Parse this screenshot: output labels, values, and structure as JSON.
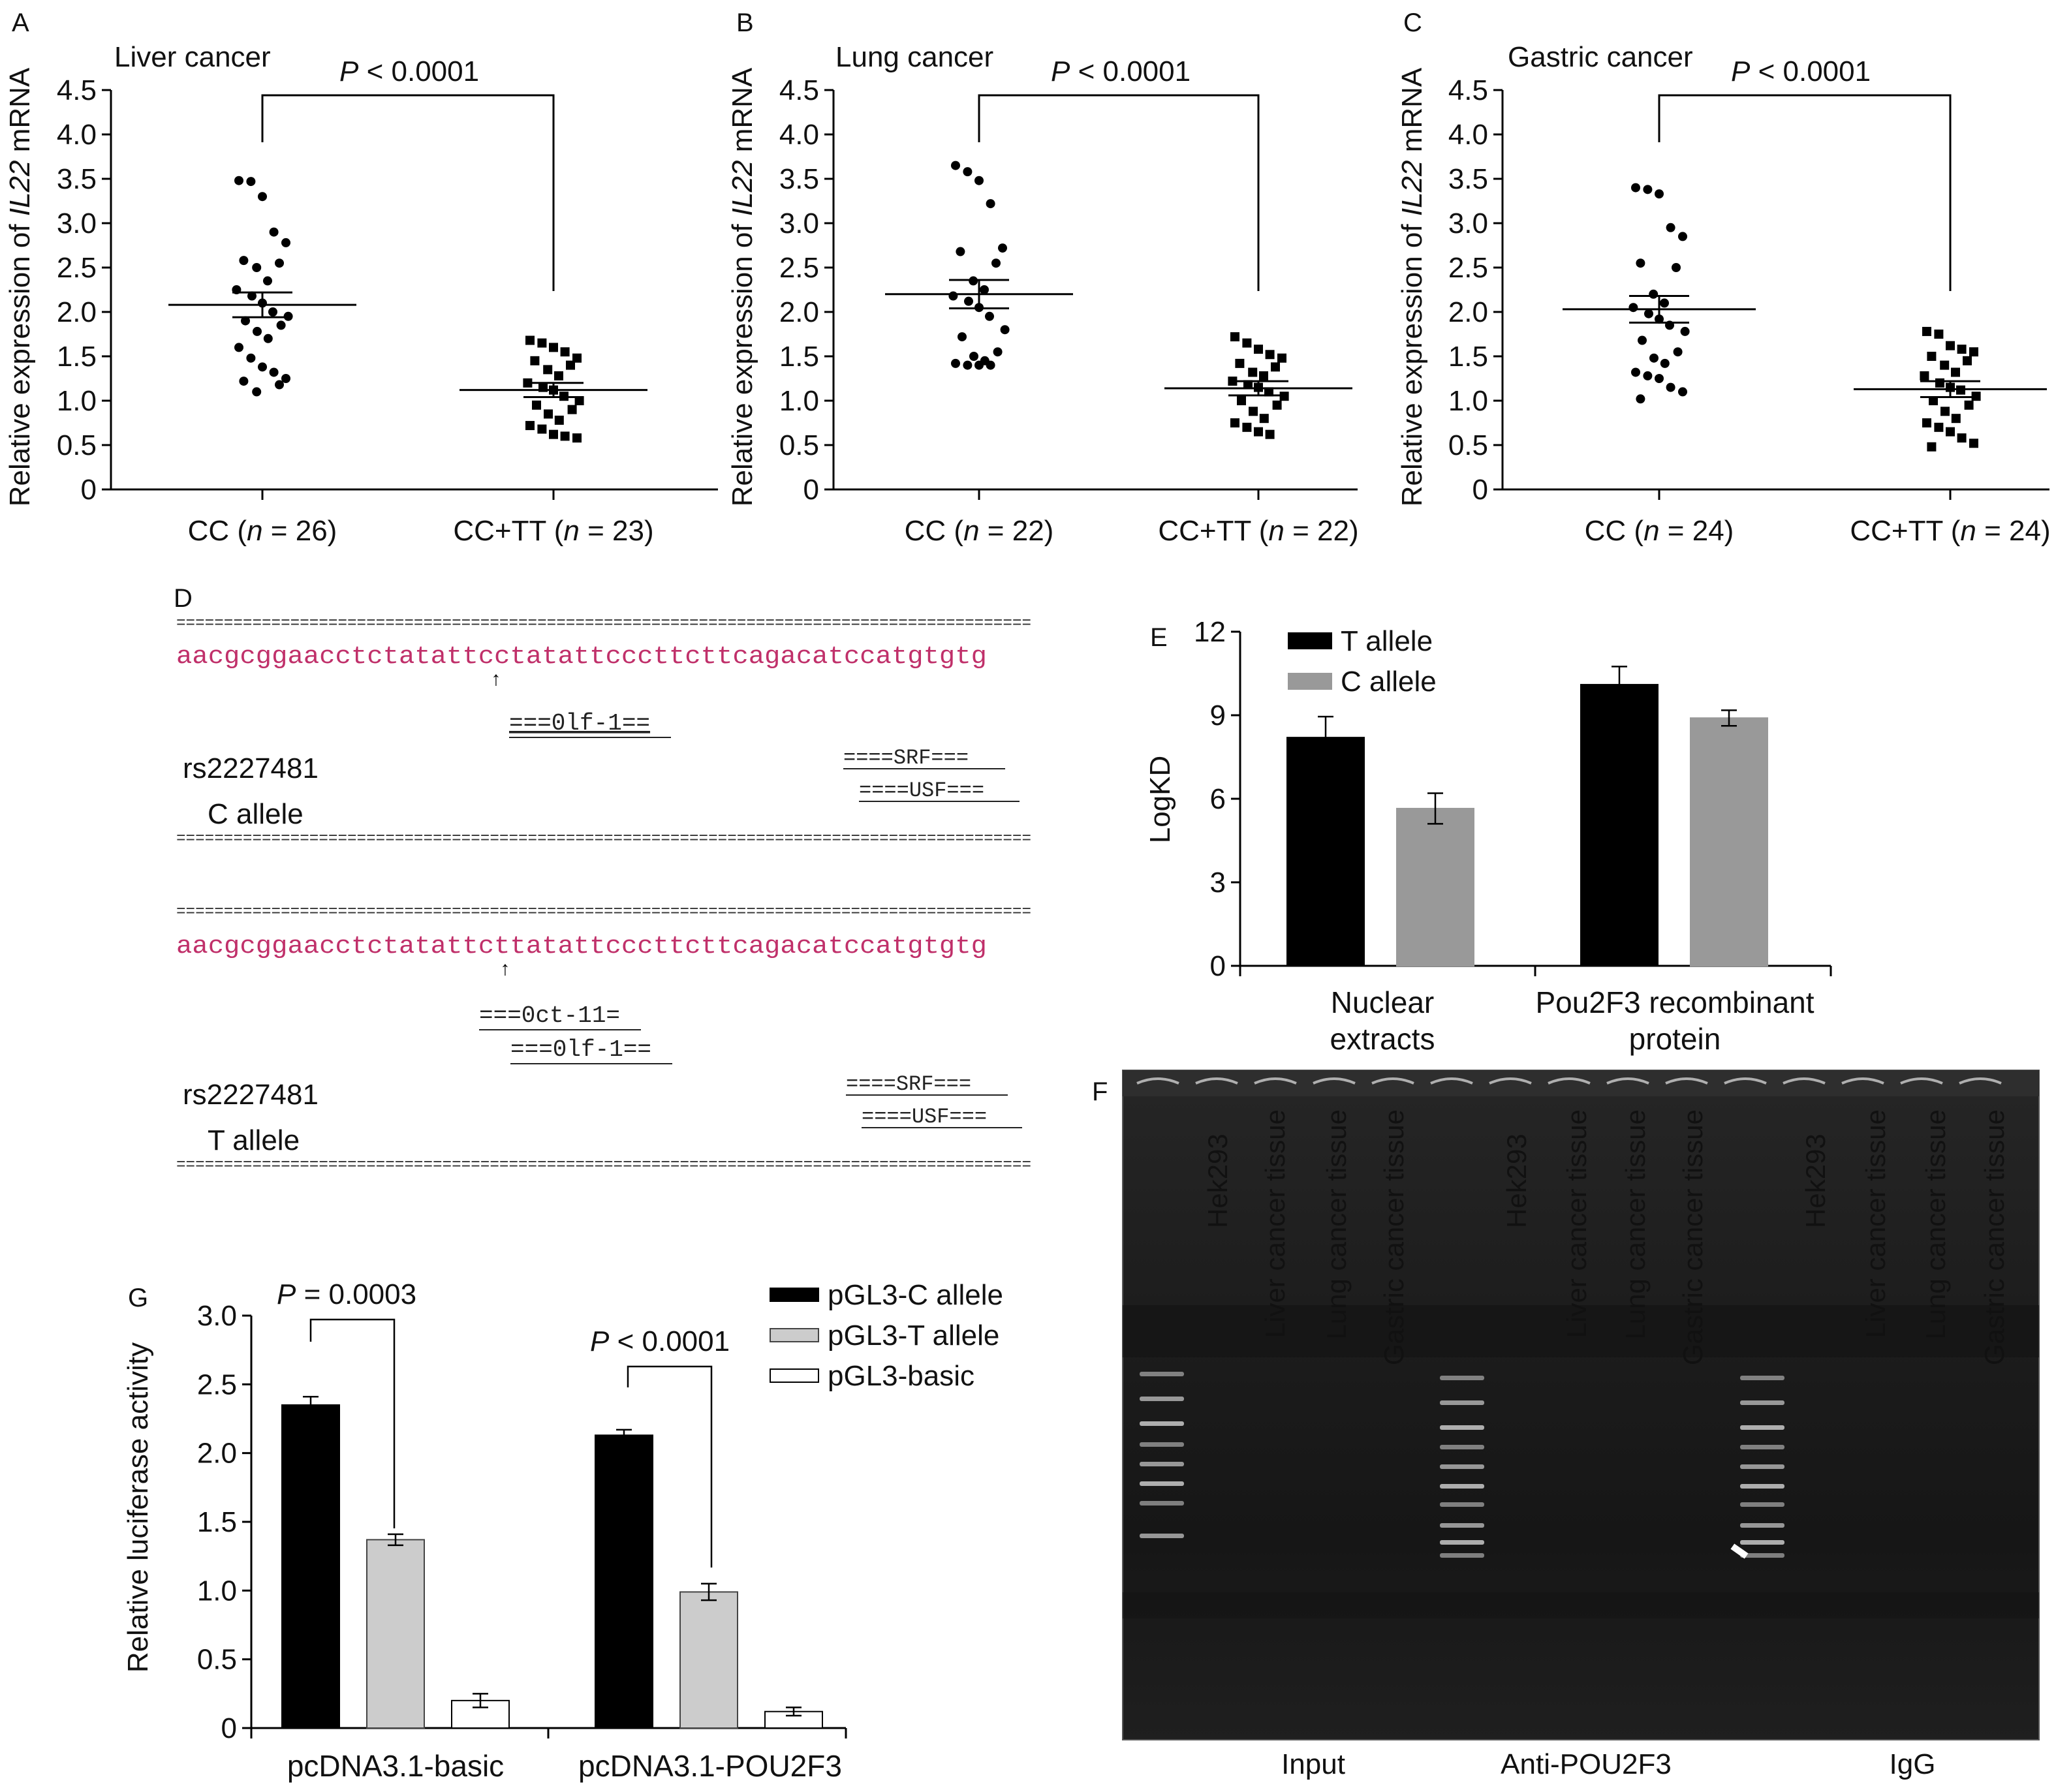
{
  "panels": {
    "A": {
      "letter": "A",
      "title": "Liver cancer",
      "p_label": "P",
      "p_text": " < 0.0001"
    },
    "B": {
      "letter": "B",
      "title": "Lung cancer",
      "p_label": "P",
      "p_text": " < 0.0001"
    },
    "C": {
      "letter": "C",
      "title": "Gastric cancer",
      "p_label": "P",
      "p_text": " < 0.0001"
    },
    "D": {
      "letter": "D"
    },
    "E": {
      "letter": "E"
    },
    "F": {
      "letter": "F"
    },
    "G": {
      "letter": "G",
      "p1_label": "P",
      "p1_text": " = 0.0003",
      "p2_label": "P",
      "p2_text": " < 0.0001"
    }
  },
  "scatter_ylabel": {
    "pre": "Relative expression of ",
    "italic": "IL22",
    "post": " mRNA"
  },
  "colors": {
    "black": "#000000",
    "gray": "#999999",
    "lightgray": "#cccccc",
    "white": "#ffffff",
    "sequence": "#c0306a",
    "gel_bg": "#1b1b1b"
  },
  "chart_data": [
    {
      "panel": "A",
      "type": "scatter",
      "title": "Liver cancer",
      "ylabel": "Relative expression of IL22 mRNA",
      "ylim": [
        0,
        4.5
      ],
      "yticks": [
        "0",
        "0.5",
        "1.0",
        "1.5",
        "2.0",
        "2.5",
        "3.0",
        "3.5",
        "4.0",
        "4.5"
      ],
      "groups": [
        {
          "prefix": "CC (",
          "n_label": "n",
          "n_text": " = 26)",
          "mean": 2.08,
          "sem_low": 1.94,
          "sem_high": 2.22,
          "marker": "circle",
          "values": [
            3.48,
            3.47,
            3.3,
            2.9,
            2.78,
            2.58,
            2.55,
            2.5,
            2.35,
            2.25,
            2.18,
            2.1,
            2.0,
            1.95,
            1.9,
            1.85,
            1.78,
            1.7,
            1.6,
            1.48,
            1.38,
            1.32,
            1.25,
            1.22,
            1.18,
            1.1
          ]
        },
        {
          "prefix": "CC+TT (",
          "n_label": "n",
          "n_text": " = 23)",
          "mean": 1.12,
          "sem_low": 1.04,
          "sem_high": 1.2,
          "marker": "square",
          "values": [
            1.68,
            1.65,
            1.6,
            1.55,
            1.48,
            1.45,
            1.4,
            1.35,
            1.28,
            1.2,
            1.15,
            1.12,
            1.05,
            1.0,
            0.95,
            0.9,
            0.85,
            0.78,
            0.72,
            0.68,
            0.62,
            0.6,
            0.58
          ]
        }
      ]
    },
    {
      "panel": "B",
      "type": "scatter",
      "title": "Lung cancer",
      "ylabel": "Relative expression of IL22 mRNA",
      "ylim": [
        0,
        4.5
      ],
      "yticks": [
        "0",
        "0.5",
        "1.0",
        "1.5",
        "2.0",
        "2.5",
        "3.0",
        "3.5",
        "4.0",
        "4.5"
      ],
      "groups": [
        {
          "prefix": "CC (",
          "n_label": "n",
          "n_text": " = 22)",
          "mean": 2.2,
          "sem_low": 2.04,
          "sem_high": 2.36,
          "marker": "circle",
          "values": [
            3.65,
            3.58,
            3.48,
            3.22,
            2.72,
            2.68,
            2.55,
            2.35,
            2.25,
            2.18,
            2.12,
            2.05,
            1.95,
            1.8,
            1.72,
            1.55,
            1.5,
            1.45,
            1.42,
            1.4,
            1.4,
            1.4
          ]
        },
        {
          "prefix": "CC+TT (",
          "n_label": "n",
          "n_text": " = 22)",
          "mean": 1.14,
          "sem_low": 1.06,
          "sem_high": 1.22,
          "marker": "square",
          "values": [
            1.72,
            1.65,
            1.58,
            1.52,
            1.48,
            1.42,
            1.38,
            1.32,
            1.28,
            1.22,
            1.18,
            1.15,
            1.1,
            1.05,
            1.0,
            0.95,
            0.88,
            0.8,
            0.75,
            0.7,
            0.65,
            0.62
          ]
        }
      ]
    },
    {
      "panel": "C",
      "type": "scatter",
      "title": "Gastric cancer",
      "ylabel": "Relative expression of IL22 mRNA",
      "ylim": [
        0,
        4.5
      ],
      "yticks": [
        "0",
        "0.5",
        "1.0",
        "1.5",
        "2.0",
        "2.5",
        "3.0",
        "3.5",
        "4.0",
        "4.5"
      ],
      "groups": [
        {
          "prefix": "CC (",
          "n_label": "n",
          "n_text": " = 24)",
          "mean": 2.03,
          "sem_low": 1.88,
          "sem_high": 2.18,
          "marker": "circle",
          "values": [
            3.4,
            3.38,
            3.33,
            2.95,
            2.85,
            2.55,
            2.5,
            2.2,
            2.1,
            2.05,
            1.98,
            1.92,
            1.85,
            1.78,
            1.68,
            1.55,
            1.48,
            1.42,
            1.32,
            1.28,
            1.25,
            1.15,
            1.1,
            1.02
          ]
        },
        {
          "prefix": "CC+TT (",
          "n_label": "n",
          "n_text": " = 24)",
          "mean": 1.13,
          "sem_low": 1.04,
          "sem_high": 1.22,
          "marker": "square",
          "values": [
            1.78,
            1.75,
            1.62,
            1.58,
            1.55,
            1.5,
            1.45,
            1.4,
            1.32,
            1.28,
            1.2,
            1.15,
            1.12,
            1.05,
            1.0,
            0.95,
            0.88,
            0.8,
            0.75,
            0.7,
            0.65,
            0.58,
            0.52,
            0.48
          ]
        }
      ]
    },
    {
      "panel": "E",
      "type": "bar",
      "ylabel": "LogKD",
      "ylim": [
        0,
        12
      ],
      "yticks": [
        "0",
        "3",
        "6",
        "9",
        "12"
      ],
      "categories": [
        "Nuclear|extracts",
        "Pou2F3 recombinant|protein"
      ],
      "series": [
        {
          "name": "T allele",
          "color": "#000000",
          "values": [
            8.2,
            10.1
          ],
          "errors": [
            0.75,
            0.65
          ]
        },
        {
          "name": "C allele",
          "color": "#999999",
          "values": [
            5.65,
            8.9
          ],
          "errors": [
            0.55,
            0.28
          ]
        }
      ]
    },
    {
      "panel": "G",
      "type": "bar",
      "ylabel": "Relative luciferase activity",
      "ylim": [
        0,
        3.0
      ],
      "yticks": [
        "0",
        "0.5",
        "1.0",
        "1.5",
        "2.0",
        "2.5",
        "3.0"
      ],
      "categories": [
        "pcDNA3.1-basic",
        "pcDNA3.1-POU2F3"
      ],
      "series": [
        {
          "name": "pGL3-C allele",
          "color": "#000000",
          "values": [
            2.35,
            2.13
          ],
          "errors": [
            0.06,
            0.04
          ]
        },
        {
          "name": "pGL3-T allele",
          "color": "#cccccc",
          "values": [
            1.37,
            0.99
          ],
          "errors": [
            0.04,
            0.06
          ]
        },
        {
          "name": "pGL3-basic",
          "color": "#ffffff",
          "values": [
            0.2,
            0.12
          ],
          "errors": [
            0.05,
            0.03
          ]
        }
      ]
    }
  ],
  "sequence_panel": {
    "equals_line": "==========================================================================================",
    "blocks": [
      {
        "sequence": "aacgcggaacctctatattcctatattcccttcttcagacatccatgtgtg",
        "arrow": "↑",
        "sites": [
          "===0lf-1==",
          "====SRF===",
          "====USF==="
        ],
        "rs": "rs2227481",
        "allele": "C allele"
      },
      {
        "sequence": "aacgcggaacctctatattcttatattcccttcttcagacatccatgtgtg",
        "arrow": "↑",
        "sites": [
          "===0ct-11=",
          "===0lf-1==",
          "====SRF===",
          "====USF==="
        ],
        "rs": "rs2227481",
        "allele": "T allele"
      }
    ]
  },
  "gel": {
    "lane_labels": [
      "Hek293",
      "Liver cancer tissue",
      "Lung cancer tissue",
      "Gastric cancer tissue",
      "Hek293",
      "Liver cancer tissue",
      "Lung cancer tissue",
      "Gastric cancer tissue",
      "Hek293",
      "Liver cancer tissue",
      "Lung cancer tissue",
      "Gastric cancer tissue"
    ],
    "group_labels": [
      "Input",
      "Anti-POU2F3",
      "IgG"
    ]
  }
}
